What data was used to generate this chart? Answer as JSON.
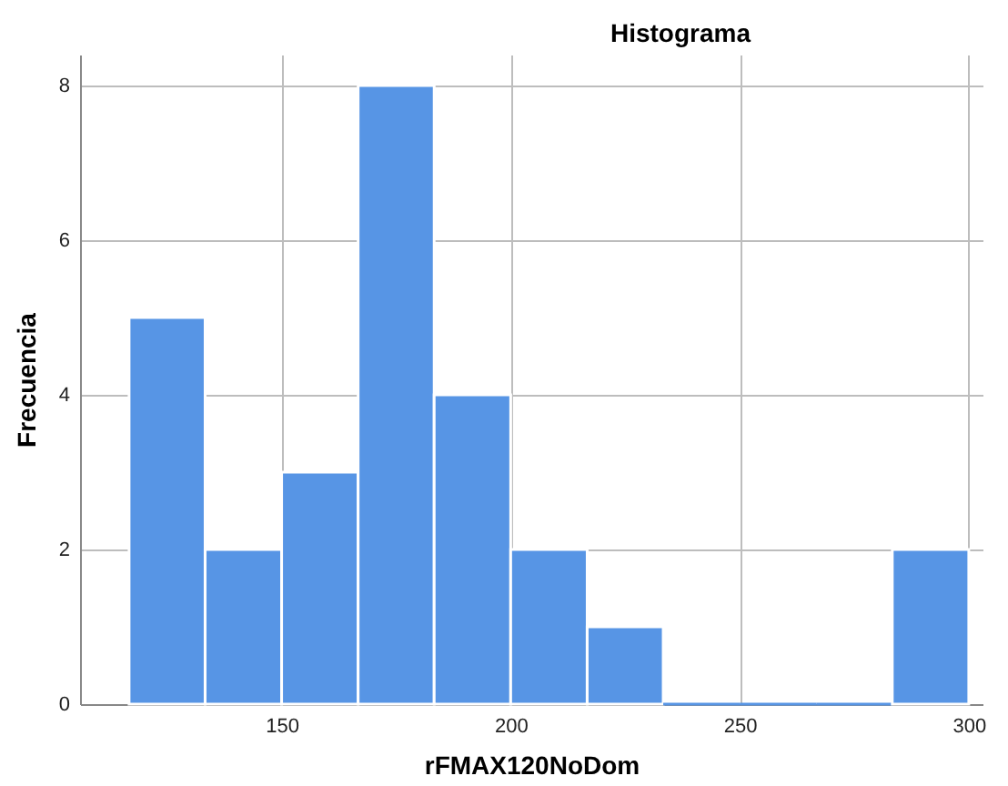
{
  "chart_data": {
    "type": "histogram",
    "title": "Histograma",
    "xlabel": "rFMAX120NoDom",
    "ylabel": "Frecuencia",
    "bins": [
      116.7,
      133.3,
      150,
      166.7,
      183.3,
      200,
      216.7,
      233.3,
      250,
      266.7,
      283.3,
      300
    ],
    "values": [
      5,
      2,
      3,
      8,
      4,
      2,
      1,
      0,
      0,
      0,
      2
    ],
    "color": "#5795e5",
    "xlim": [
      106,
      303
    ],
    "xticks": [
      150,
      200,
      250,
      300
    ],
    "ylim": [
      0,
      8.4
    ],
    "yticks": [
      0,
      2,
      4,
      6,
      8
    ],
    "grid": true
  }
}
